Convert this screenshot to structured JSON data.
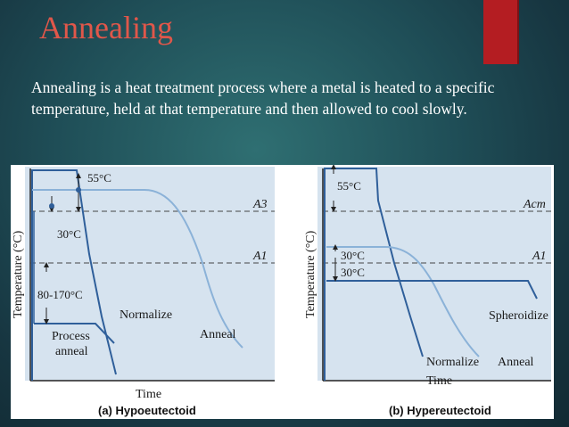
{
  "slide": {
    "title": "Annealing",
    "body": "Annealing is a heat treatment process where a metal is heated to a specific temperature, held at that temperature and then allowed to cool slowly.",
    "accent_color": "#b41d22",
    "title_color": "#e0574a"
  },
  "figure": {
    "left": {
      "ylabel": "Temperature (°C)",
      "xlabel": "Time",
      "caption": "(a) Hypoeutectoid",
      "lines": {
        "upper": "A3",
        "lower": "A1"
      },
      "annotations": {
        "top": "55°C",
        "mid": "30°C",
        "low": "80-170°C"
      },
      "curves": {
        "normalize": "Normalize",
        "anneal": "Anneal",
        "process_anneal_1": "Process",
        "process_anneal_2": "anneal"
      }
    },
    "right": {
      "ylabel": "Temperature (°C)",
      "xlabel": "Time",
      "caption": "(b) Hypereutectoid",
      "lines": {
        "upper": "Acm",
        "lower": "A1"
      },
      "annotations": {
        "top": "55°C",
        "mid1": "30°C",
        "mid2": "30°C"
      },
      "curves": {
        "spheroidize": "Spheroidize",
        "normalize": "Normalize",
        "anneal": "Anneal"
      }
    }
  }
}
